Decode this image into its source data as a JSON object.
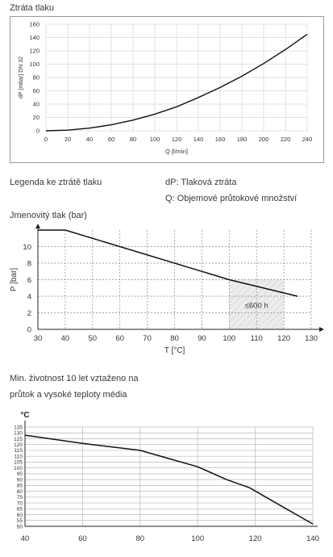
{
  "sections": {
    "pressure_loss_title": "Ztráta tlaku",
    "legend_title": "Legenda ke ztrátě tlaku",
    "legend_dp": "dP: Tlaková ztráta",
    "legend_q": "Q: Objemové průtokové množství",
    "nominal_pressure_title": "Jmenovitý tlak (bar)",
    "lifetime_title_line1": "Min. životnost 10 let vztaženo na",
    "lifetime_title_line2": "průtok a vysoké teploty média"
  },
  "chart_data": [
    {
      "type": "line",
      "title": "Ztráta tlaku",
      "xlabel": "Q [l/min]",
      "ylabel": "dP [mbar] DN 32",
      "xlim": [
        0,
        240
      ],
      "ylim": [
        0,
        160
      ],
      "xticks": [
        "0",
        "20",
        "40",
        "60",
        "80",
        "100",
        "120",
        "140",
        "160",
        "180",
        "200",
        "220",
        "240"
      ],
      "yticks": [
        "0",
        "20",
        "40",
        "60",
        "80",
        "100",
        "120",
        "140",
        "160"
      ],
      "grid": true,
      "series": [
        {
          "x": [
            0,
            20,
            40,
            60,
            80,
            100,
            120,
            140,
            160,
            180,
            200,
            220,
            240
          ],
          "y": [
            0,
            1,
            4,
            9,
            16,
            25,
            36,
            50,
            65,
            82,
            101,
            122,
            145
          ]
        }
      ]
    },
    {
      "type": "line",
      "title": "Jmenovitý tlak (bar)",
      "xlabel": "T [°C]",
      "ylabel": "P [bar]",
      "xlim": [
        30,
        130
      ],
      "ylim": [
        0,
        12
      ],
      "xticks": [
        "30",
        "40",
        "50",
        "60",
        "70",
        "80",
        "90",
        "100",
        "110",
        "120",
        "130"
      ],
      "yticks": [
        "0",
        "2",
        "4",
        "6",
        "8",
        "10"
      ],
      "grid": true,
      "series": [
        {
          "x": [
            30,
            40,
            100,
            125
          ],
          "y": [
            12,
            12,
            6,
            4
          ]
        }
      ],
      "annotations": [
        {
          "text": "≤600 h",
          "x_range": [
            100,
            120
          ],
          "y_range": [
            0,
            6
          ]
        }
      ]
    },
    {
      "type": "line",
      "title": "Min. životnost 10 let vztaženo na průtok a vysoké teploty média",
      "xlabel": "",
      "ylabel": "°C",
      "xlim": [
        40,
        140
      ],
      "ylim": [
        50,
        135
      ],
      "xticks": [
        "40",
        "60",
        "80",
        "100",
        "120",
        "140"
      ],
      "yticks": [
        "50",
        "55",
        "60",
        "65",
        "70",
        "75",
        "80",
        "85",
        "90",
        "95",
        "100",
        "105",
        "110",
        "115",
        "120",
        "125",
        "130",
        "135"
      ],
      "grid": true,
      "series": [
        {
          "x": [
            40,
            60,
            80,
            90,
            100,
            110,
            118,
            130,
            140
          ],
          "y": [
            128,
            121,
            115,
            108,
            101,
            90,
            83,
            66,
            52
          ]
        }
      ]
    }
  ]
}
